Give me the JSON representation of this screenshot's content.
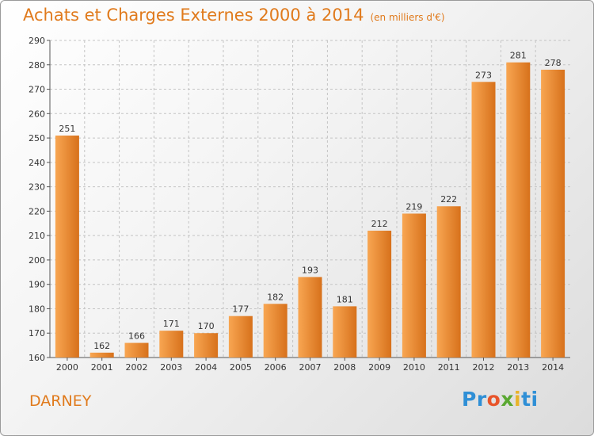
{
  "colors": {
    "accent": "#e07a1c",
    "bar_light": "#f8a652",
    "bar_dark": "#d7711b",
    "logo_letters": [
      "#2f8fd6",
      "#2f8fd6",
      "#e8542a",
      "#5aa832",
      "#e8b32a",
      "#2f8fd6"
    ]
  },
  "header": {
    "title": "Achats et Charges Externes 2000 à 2014",
    "subtitle": "(en milliers d'€)"
  },
  "footer": {
    "commune": "DARNEY",
    "logo": "Proxiti"
  },
  "chart_data": {
    "type": "bar",
    "title": "Achats et Charges Externes 2000 à 2014",
    "subtitle": "(en milliers d'€)",
    "categories": [
      "2000",
      "2001",
      "2002",
      "2003",
      "2004",
      "2005",
      "2006",
      "2007",
      "2008",
      "2009",
      "2010",
      "2011",
      "2012",
      "2013",
      "2014"
    ],
    "values": [
      251,
      162,
      166,
      171,
      170,
      177,
      182,
      193,
      181,
      212,
      219,
      222,
      273,
      281,
      278
    ],
    "ylim": [
      160,
      290
    ],
    "yticks": [
      160,
      170,
      180,
      190,
      200,
      210,
      220,
      230,
      240,
      250,
      260,
      270,
      280,
      290
    ],
    "grid": true,
    "xlabel": "",
    "ylabel": ""
  }
}
